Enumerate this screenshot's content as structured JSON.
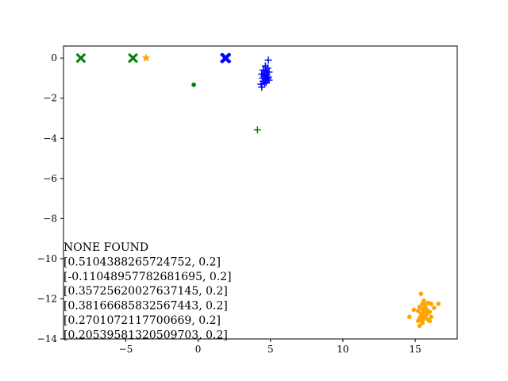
{
  "chart_data": {
    "type": "scatter",
    "title": "",
    "xlabel": "",
    "ylabel": "",
    "xlim": [
      -9.3,
      17.9
    ],
    "ylim": [
      -14.0,
      0.6
    ],
    "grid": false,
    "x_ticks": [
      {
        "value": -5,
        "label": "−5"
      },
      {
        "value": 0,
        "label": "0"
      },
      {
        "value": 5,
        "label": "5"
      },
      {
        "value": 10,
        "label": "10"
      },
      {
        "value": 15,
        "label": "15"
      }
    ],
    "y_ticks": [
      {
        "value": 0,
        "label": "0"
      },
      {
        "value": -2,
        "label": "−2"
      },
      {
        "value": -4,
        "label": "−4"
      },
      {
        "value": -6,
        "label": "−6"
      },
      {
        "value": -8,
        "label": "−8"
      },
      {
        "value": -10,
        "label": "−10"
      },
      {
        "value": -12,
        "label": "−12"
      },
      {
        "value": -14,
        "label": "−14"
      }
    ],
    "series": [
      {
        "marker": "x-filled",
        "color": "#008000",
        "points": [
          [
            -8.1,
            0.0
          ],
          [
            -4.5,
            0.0
          ]
        ]
      },
      {
        "marker": "star",
        "color": "#ffa500",
        "points": [
          [
            -3.6,
            0.0
          ]
        ]
      },
      {
        "marker": "x-filled",
        "color": "#0000ff",
        "points": [
          [
            1.85,
            0.0
          ],
          [
            1.95,
            0.0
          ],
          [
            1.9,
            0.02
          ],
          [
            1.9,
            -0.02
          ]
        ]
      },
      {
        "marker": "circle",
        "color": "#008000",
        "points": [
          [
            -0.3,
            -1.33
          ]
        ]
      },
      {
        "marker": "plus",
        "color": "#008000",
        "points": [
          [
            4.1,
            -3.58
          ]
        ]
      },
      {
        "marker": "plus",
        "color": "#0000ff",
        "points": [
          [
            4.85,
            -0.1
          ],
          [
            4.65,
            -0.4
          ],
          [
            4.8,
            -0.5
          ],
          [
            4.5,
            -0.6
          ],
          [
            4.7,
            -0.65
          ],
          [
            4.9,
            -0.7
          ],
          [
            4.6,
            -0.75
          ],
          [
            4.4,
            -0.8
          ],
          [
            4.75,
            -0.85
          ],
          [
            4.55,
            -0.9
          ],
          [
            4.85,
            -0.95
          ],
          [
            4.45,
            -1.0
          ],
          [
            4.65,
            -1.05
          ],
          [
            4.9,
            -1.1
          ],
          [
            4.5,
            -1.15
          ],
          [
            4.7,
            -1.2
          ],
          [
            4.35,
            -1.3
          ],
          [
            4.6,
            -1.25
          ],
          [
            4.4,
            -1.45
          ],
          [
            4.8,
            -1.0
          ]
        ]
      },
      {
        "marker": "circle",
        "color": "#ffa500",
        "points": [
          [
            15.4,
            -11.75
          ],
          [
            15.6,
            -12.1
          ],
          [
            15.5,
            -12.25
          ],
          [
            15.9,
            -12.2
          ],
          [
            16.1,
            -12.25
          ],
          [
            16.6,
            -12.25
          ],
          [
            15.3,
            -12.4
          ],
          [
            15.7,
            -12.4
          ],
          [
            15.5,
            -12.5
          ],
          [
            15.8,
            -12.55
          ],
          [
            15.2,
            -12.6
          ],
          [
            14.9,
            -12.55
          ],
          [
            15.6,
            -12.65
          ],
          [
            16.0,
            -12.65
          ],
          [
            15.4,
            -12.75
          ],
          [
            15.8,
            -12.75
          ],
          [
            15.5,
            -12.85
          ],
          [
            16.1,
            -12.9
          ],
          [
            15.7,
            -12.9
          ],
          [
            15.3,
            -12.95
          ],
          [
            14.6,
            -12.9
          ],
          [
            15.6,
            -13.0
          ],
          [
            15.9,
            -13.05
          ],
          [
            15.4,
            -13.05
          ],
          [
            15.2,
            -13.1
          ],
          [
            16.0,
            -13.1
          ],
          [
            15.5,
            -13.2
          ],
          [
            15.3,
            -13.35
          ],
          [
            15.7,
            -12.3
          ],
          [
            16.3,
            -12.45
          ]
        ]
      }
    ],
    "annotation_lines": [
      "NONE FOUND",
      "[0.5104388265724752, 0.2]",
      "[-0.11048957782681695, 0.2]",
      "[0.35725620027637145, 0.2]",
      "[0.38166685832567443, 0.2]",
      "[0.2701072117700669, 0.2]",
      "[0.2053958132050970​3, 0.2]"
    ]
  }
}
